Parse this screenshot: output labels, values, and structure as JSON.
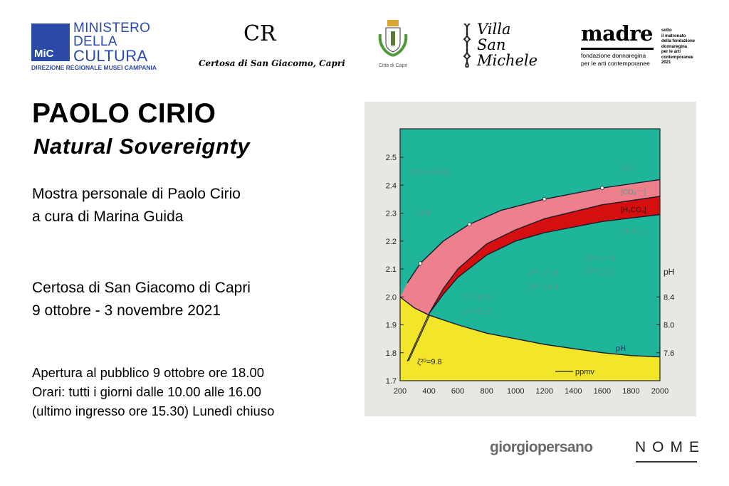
{
  "logos": {
    "mic": {
      "mark": "MiC",
      "lines": [
        "MINISTERO",
        "DELLA",
        "CULTURA"
      ],
      "sub": "DIREZIONE REGIONALE MUSEI CAMPANIA",
      "color": "#2a4aa6"
    },
    "certosa": {
      "mark": "CR",
      "name": "Certosa di San Giacomo, Capri"
    },
    "capri": {
      "name": "Città di Capri"
    },
    "villa": {
      "lines": [
        "Villa",
        "San",
        "Michele"
      ]
    },
    "madre": {
      "title": "madre",
      "sub": [
        "fondazione donnaregina",
        "per le arti contemporanee"
      ],
      "side": [
        "sotto",
        "il matronato",
        "della fondazione",
        "donnaregina",
        "per le arti",
        "contemporanee",
        "2021"
      ]
    }
  },
  "exhibition": {
    "artist": "PAOLO CIRIO",
    "title": "Natural Sovereignty",
    "subtitle": [
      "Mostra personale di Paolo Cirio",
      "a cura di Marina Guida"
    ],
    "venue": "Certosa di San Giacomo di Capri",
    "dates": "9 ottobre - 3 novembre 2021",
    "info": [
      "Apertura al pubblico 9 ottobre ore 18.00",
      "Orari: tutti i giorni dalle 10.00 alle 16.00",
      "(ultimo ingresso ore 15.30) Lunedì chiuso"
    ]
  },
  "painting": {
    "colors": {
      "bg": "#1fb59a",
      "pink": "#ee7f8c",
      "red": "#d50f0f",
      "yellow": "#f2e52a",
      "canvas": "#e9e7e4"
    },
    "x_ticks": [
      200,
      400,
      600,
      800,
      1000,
      1200,
      1400,
      1600,
      1800,
      2000
    ],
    "y_ticks": [
      "1.7",
      "1.8",
      "1.9",
      "2.0",
      "2.1",
      "2.2",
      "2.3",
      "2.4",
      "2.5"
    ],
    "ph_ticks": [
      {
        "label": "8.4",
        "at": 2.0
      },
      {
        "label": "8.0",
        "at": 1.9
      },
      {
        "label": "7.6",
        "at": 1.8
      }
    ],
    "sum_c": [
      [
        200,
        2.0
      ],
      [
        250,
        2.05
      ],
      [
        340,
        2.12
      ],
      [
        500,
        2.2
      ],
      [
        680,
        2.26
      ],
      [
        900,
        2.31
      ],
      [
        1200,
        2.35
      ],
      [
        1600,
        2.39
      ],
      [
        2000,
        2.42
      ]
    ],
    "co3_bottom": [
      [
        400,
        1.94
      ],
      [
        500,
        2.03
      ],
      [
        600,
        2.1
      ],
      [
        800,
        2.19
      ],
      [
        1000,
        2.24
      ],
      [
        1200,
        2.28
      ],
      [
        1600,
        2.33
      ],
      [
        2000,
        2.36
      ]
    ],
    "h2co3_bottom": [
      [
        400,
        1.94
      ],
      [
        500,
        2.01
      ],
      [
        600,
        2.07
      ],
      [
        800,
        2.15
      ],
      [
        1000,
        2.2
      ],
      [
        1200,
        2.23
      ],
      [
        1600,
        2.27
      ],
      [
        2000,
        2.295
      ]
    ],
    "ph_curve": [
      [
        200,
        2.0
      ],
      [
        300,
        1.96
      ],
      [
        400,
        1.935
      ],
      [
        600,
        1.9
      ],
      [
        800,
        1.87
      ],
      [
        1000,
        1.85
      ],
      [
        1200,
        1.83
      ],
      [
        1400,
        1.815
      ],
      [
        1600,
        1.8
      ],
      [
        1800,
        1.79
      ],
      [
        2000,
        1.785
      ]
    ],
    "points": [
      [
        340,
        2.12
      ],
      [
        680,
        2.26
      ],
      [
        1200,
        2.35
      ],
      [
        1600,
        2.39
      ]
    ],
    "labels": {
      "y_axis": "C(mmol/kg)",
      "year": "1981",
      "sum_c": "[ΣC]",
      "co3": "[CO₃⁻⁻]",
      "h2co3": "[H₂CO₃]",
      "hco3": "[HCO₃⁻]",
      "z1": [
        "ζ²⁰=9.8"
      ],
      "z2": [
        "ζ²⁰=12.9",
        "ζ²⁵=11.9"
      ],
      "z3": [
        "ζ²⁰=15.9",
        "ζ²⁵=14.9"
      ],
      "z4": [
        "ζ²⁰=17.0",
        "ζ²⁵=16.1"
      ],
      "ph_axis": "pH",
      "ph_curve": "pH",
      "x_axis": "ppmv"
    }
  },
  "sponsors": {
    "gallery": "giorgiopersano",
    "nome": "NOME"
  }
}
